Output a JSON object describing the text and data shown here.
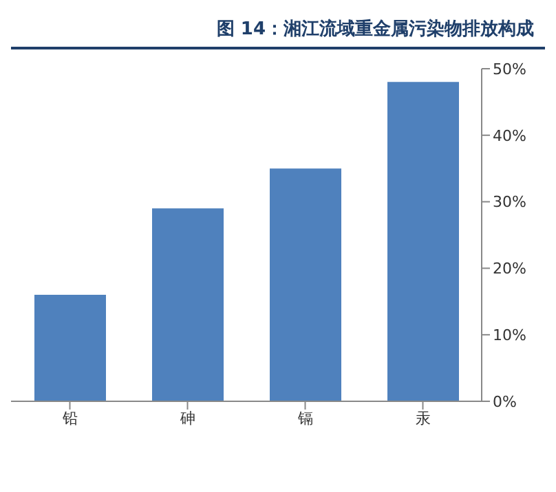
{
  "chart_data": {
    "type": "bar",
    "title": "图 14：湘江流域重金属污染物排放构成",
    "categories": [
      "铅",
      "砷",
      "镉",
      "汞"
    ],
    "values": [
      16,
      29,
      35,
      48
    ],
    "color": "#4f81bd",
    "ylim": [
      0,
      50
    ],
    "yticks": [
      {
        "value": 0,
        "label": "0%"
      },
      {
        "value": 10,
        "label": "10%"
      },
      {
        "value": 20,
        "label": "20%"
      },
      {
        "value": 30,
        "label": "30%"
      },
      {
        "value": 40,
        "label": "40%"
      },
      {
        "value": 50,
        "label": "50%"
      }
    ],
    "grid": false
  }
}
